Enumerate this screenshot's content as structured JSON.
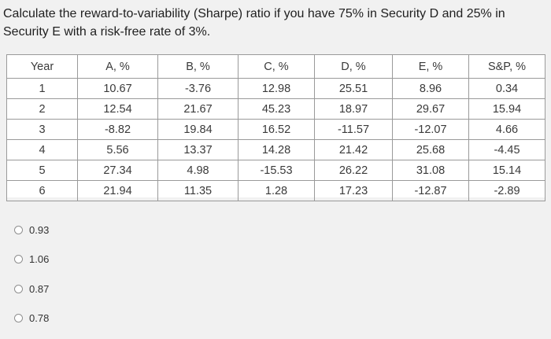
{
  "question": {
    "text": "Calculate the reward-to-variability (Sharpe) ratio if you have 75% in Security D and 25% in Security E with a risk-free rate of 3%."
  },
  "table": {
    "headers": [
      "Year",
      "A, %",
      "B, %",
      "C, %",
      "D, %",
      "E, %",
      "S&P, %"
    ],
    "rows": [
      [
        "1",
        "10.67",
        "-3.76",
        "12.98",
        "25.51",
        "8.96",
        "0.34"
      ],
      [
        "2",
        "12.54",
        "21.67",
        "45.23",
        "18.97",
        "29.67",
        "15.94"
      ],
      [
        "3",
        "-8.82",
        "19.84",
        "16.52",
        "-11.57",
        "-12.07",
        "4.66"
      ],
      [
        "4",
        "5.56",
        "13.37",
        "14.28",
        "21.42",
        "25.68",
        "-4.45"
      ],
      [
        "5",
        "27.34",
        "4.98",
        "-15.53",
        "26.22",
        "31.08",
        "15.14"
      ],
      [
        "6",
        "21.94",
        "11.35",
        "1.28",
        "17.23",
        "-12.87",
        "-2.89"
      ]
    ]
  },
  "options": [
    {
      "label": "0.93"
    },
    {
      "label": "1.06"
    },
    {
      "label": "0.87"
    },
    {
      "label": "0.78"
    }
  ]
}
